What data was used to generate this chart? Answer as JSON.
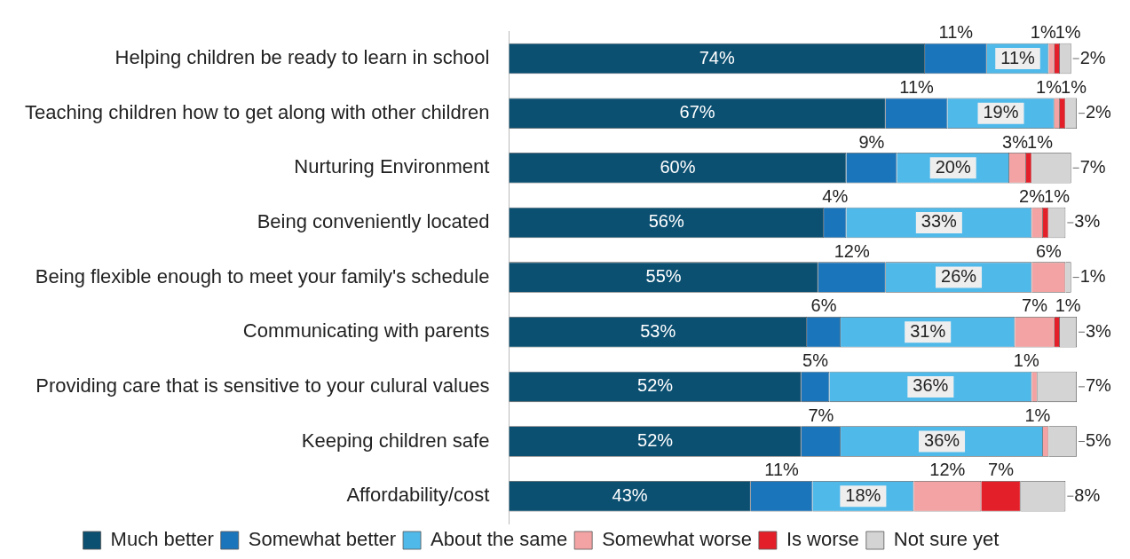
{
  "chart_data": {
    "type": "bar",
    "orientation": "horizontal",
    "stacked": true,
    "legend": "bottom",
    "grid": false,
    "categories": [
      "Helping children be ready to learn in school",
      "Teaching children how to get along with other children",
      "Nurturing Environment",
      "Being conveniently located",
      "Being flexible enough to meet your family's schedule",
      "Communicating with parents",
      "Providing care that is sensitive to your culural values",
      "Keeping children safe",
      "Affordability/cost"
    ],
    "series": [
      {
        "name": "Much better",
        "color": "#0b4f71",
        "values": [
          74,
          67,
          60,
          56,
          55,
          53,
          52,
          52,
          43
        ],
        "value_labels": [
          "74%",
          "67%",
          "60%",
          "56%",
          "55%",
          "53%",
          "52%",
          "52%",
          "43%"
        ]
      },
      {
        "name": "Somewhat better",
        "color": "#1b75bb",
        "values": [
          11,
          11,
          9,
          4,
          12,
          6,
          5,
          7,
          11
        ],
        "value_labels": [
          "11%",
          "11%",
          "9%",
          "4%",
          "12%",
          "6%",
          "5%",
          "7%",
          "11%"
        ]
      },
      {
        "name": "About the same",
        "color": "#4fb9ea",
        "values": [
          11,
          19,
          20,
          33,
          26,
          31,
          36,
          36,
          18
        ],
        "value_labels": [
          "11%",
          "19%",
          "20%",
          "33%",
          "26%",
          "31%",
          "36%",
          "36%",
          "18%"
        ]
      },
      {
        "name": "Somewhat worse",
        "color": "#f3a3a3",
        "values": [
          1,
          1,
          3,
          2,
          6,
          7,
          1,
          1,
          12
        ],
        "value_labels": [
          "1%",
          "1%",
          "3%",
          "2%",
          "6%",
          "7%",
          "1%",
          "1%",
          "12%"
        ]
      },
      {
        "name": "Is worse",
        "color": "#e3202a",
        "values": [
          1,
          1,
          1,
          1,
          null,
          1,
          null,
          null,
          7
        ],
        "value_labels": [
          "1%",
          "1%",
          "1%",
          "1%",
          null,
          "1%",
          null,
          null,
          "7%"
        ]
      },
      {
        "name": "Not sure yet",
        "color": "#d4d4d4",
        "values": [
          2,
          2,
          7,
          3,
          1,
          3,
          7,
          5,
          8
        ],
        "value_labels": [
          "2%",
          "2%",
          "7%",
          "3%",
          "1%",
          "3%",
          "7%",
          "5%",
          "8%"
        ]
      }
    ]
  }
}
